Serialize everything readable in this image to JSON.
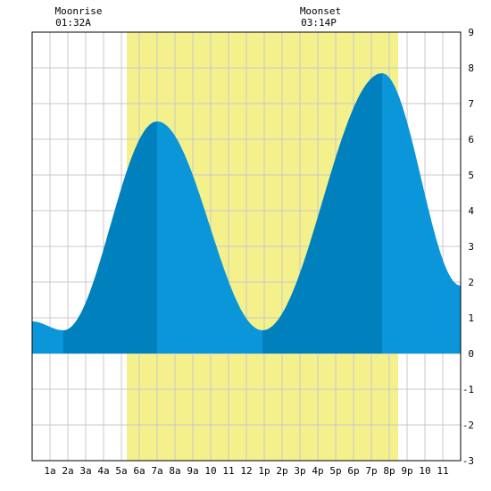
{
  "chart_data": {
    "type": "area",
    "title": "",
    "xlabel": "",
    "ylabel": "",
    "x_unit": "hour of day",
    "xlim": [
      0,
      24
    ],
    "ylim": [
      -3,
      9
    ],
    "grid": true,
    "x_ticks": [
      {
        "x": 1,
        "label": "1a"
      },
      {
        "x": 2,
        "label": "2a"
      },
      {
        "x": 3,
        "label": "3a"
      },
      {
        "x": 4,
        "label": "4a"
      },
      {
        "x": 5,
        "label": "5a"
      },
      {
        "x": 6,
        "label": "6a"
      },
      {
        "x": 7,
        "label": "7a"
      },
      {
        "x": 8,
        "label": "8a"
      },
      {
        "x": 9,
        "label": "9a"
      },
      {
        "x": 10,
        "label": "10"
      },
      {
        "x": 11,
        "label": "11"
      },
      {
        "x": 12,
        "label": "12"
      },
      {
        "x": 13,
        "label": "1p"
      },
      {
        "x": 14,
        "label": "2p"
      },
      {
        "x": 15,
        "label": "3p"
      },
      {
        "x": 16,
        "label": "4p"
      },
      {
        "x": 17,
        "label": "5p"
      },
      {
        "x": 18,
        "label": "6p"
      },
      {
        "x": 19,
        "label": "7p"
      },
      {
        "x": 20,
        "label": "8p"
      },
      {
        "x": 21,
        "label": "9p"
      },
      {
        "x": 22,
        "label": "10"
      },
      {
        "x": 23,
        "label": "11"
      }
    ],
    "y_ticks": [
      {
        "y": 9,
        "label": "9"
      },
      {
        "y": 8,
        "label": "8"
      },
      {
        "y": 7,
        "label": "7"
      },
      {
        "y": 6,
        "label": "6"
      },
      {
        "y": 5,
        "label": "5"
      },
      {
        "y": 4,
        "label": "4"
      },
      {
        "y": 3,
        "label": "3"
      },
      {
        "y": 2,
        "label": "2"
      },
      {
        "y": 1,
        "label": "1"
      },
      {
        "y": 0,
        "label": "0"
      },
      {
        "y": -1,
        "label": "-1"
      },
      {
        "y": -2,
        "label": "-2"
      },
      {
        "y": -3,
        "label": "-3"
      }
    ],
    "daylight": {
      "start": 5.3,
      "end": 20.5
    },
    "moonrise": {
      "label": "Moonrise",
      "time": "01:32A",
      "x": 1.53
    },
    "moonset": {
      "label": "Moonset",
      "time": "03:14P",
      "x": 15.23
    },
    "tide_extremes": [
      {
        "type": "low",
        "x": 1.75,
        "y": 0.65
      },
      {
        "type": "high",
        "x": 7.0,
        "y": 6.5
      },
      {
        "type": "low",
        "x": 12.9,
        "y": 0.65
      },
      {
        "type": "high",
        "x": 19.6,
        "y": 7.85
      }
    ],
    "series": [
      {
        "x": [
          0,
          24
        ],
        "y": [
          0.9,
          1.9
        ]
      }
    ],
    "colors": {
      "daylight": "#f4f18c",
      "tide_light": "#0b96da",
      "tide_dark": "#0081be",
      "grid": "#c8c8c8",
      "axis": "#000000"
    }
  }
}
